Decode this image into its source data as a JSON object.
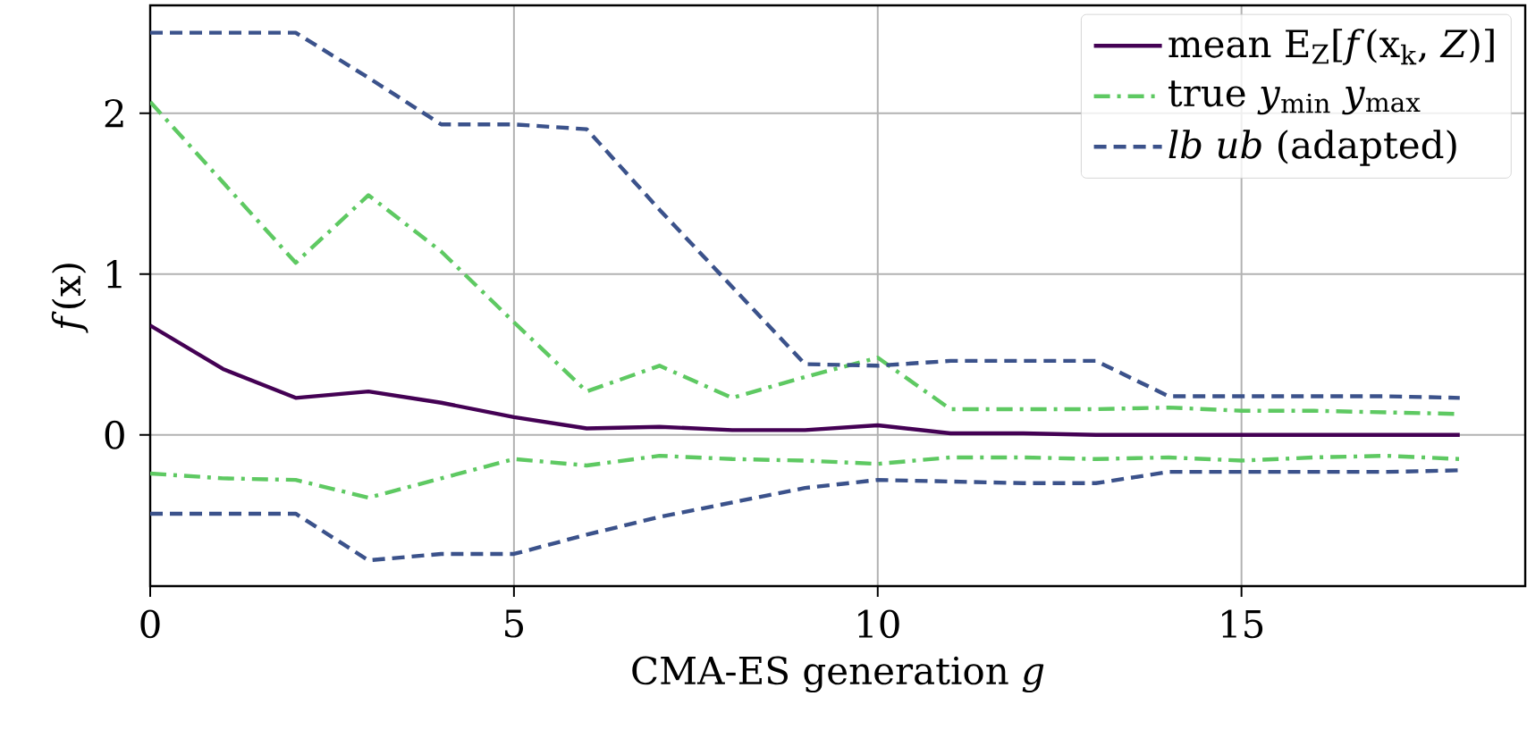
{
  "chart_data": {
    "type": "line",
    "xlabel": "CMA-ES generation *g*",
    "ylabel": "*f*(x)",
    "x": [
      0,
      1,
      2,
      3,
      4,
      5,
      6,
      7,
      8,
      9,
      10,
      11,
      12,
      13,
      14,
      15,
      16,
      17,
      18
    ],
    "series": [
      {
        "name": "mean E$_{Z}$[*f*(x$_{k}$, *Z*)]",
        "color": "#440154",
        "line_style": "solid",
        "values": [
          0.68,
          0.41,
          0.23,
          0.27,
          0.2,
          0.11,
          0.04,
          0.05,
          0.03,
          0.03,
          0.06,
          0.01,
          0.01,
          0.0,
          0.0,
          0.0,
          0.0,
          0.0,
          0.0
        ]
      },
      {
        "name": "true *y*$_{min}$ *y*$_{max}$",
        "color": "#5ec962",
        "line_style": "dashdot",
        "values": [
          2.07,
          1.57,
          1.07,
          1.49,
          1.14,
          0.7,
          0.27,
          0.43,
          0.23,
          0.36,
          0.48,
          0.16,
          0.16,
          0.16,
          0.17,
          0.15,
          0.15,
          0.14,
          0.13
        ]
      },
      {
        "color": "#5ec962",
        "line_style": "dashdot",
        "values": [
          -0.24,
          -0.27,
          -0.28,
          -0.39,
          -0.27,
          -0.15,
          -0.19,
          -0.13,
          -0.15,
          -0.16,
          -0.18,
          -0.14,
          -0.14,
          -0.15,
          -0.14,
          -0.16,
          -0.14,
          -0.13,
          -0.15
        ]
      },
      {
        "name": "*lb* *ub* (adapted)",
        "color": "#3b528b",
        "line_style": "dashed",
        "values": [
          2.5,
          2.5,
          2.5,
          2.22,
          1.93,
          1.93,
          1.9,
          1.4,
          0.92,
          0.44,
          0.43,
          0.46,
          0.46,
          0.46,
          0.24,
          0.24,
          0.24,
          0.24,
          0.23
        ]
      },
      {
        "color": "#3b528b",
        "line_style": "dashed",
        "values": [
          -0.49,
          -0.49,
          -0.49,
          -0.78,
          -0.74,
          -0.74,
          -0.62,
          -0.51,
          -0.42,
          -0.33,
          -0.28,
          -0.29,
          -0.3,
          -0.3,
          -0.23,
          -0.23,
          -0.23,
          -0.23,
          -0.22
        ]
      }
    ],
    "xlim": [
      0,
      18.9
    ],
    "ylim": [
      -0.94,
      2.67
    ],
    "xticks": [
      0,
      5,
      10,
      15
    ],
    "yticks": [
      0,
      1,
      2
    ],
    "grid": true,
    "legend": "top right"
  }
}
